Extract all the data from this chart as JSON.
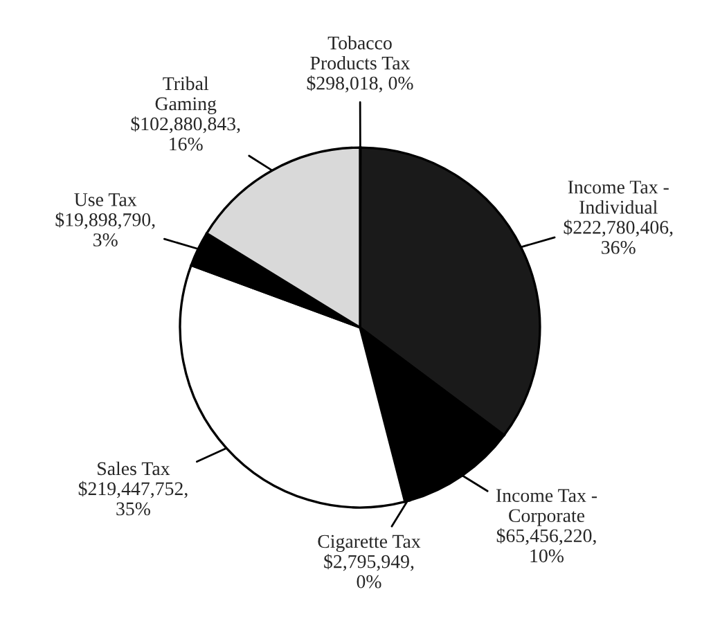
{
  "chart_data": {
    "type": "pie",
    "categories": [
      "Tobacco\nProducts Tax",
      "Income Tax -\nIndividual",
      "Income Tax -\nCorporate",
      "Cigarette Tax",
      "Sales Tax",
      "Use Tax",
      "Tribal\nGaming"
    ],
    "values": [
      298018,
      222780406,
      65456220,
      2795949,
      219447752,
      19898790,
      102880843
    ],
    "value_labels": [
      "$298,018, 0%",
      "$222,780,406,\n36%",
      "$65,456,220,\n10%",
      "$2,795,949,\n0%",
      "$219,447,752,\n35%",
      "$19,898,790,\n3%",
      "$102,880,843,\n16%"
    ],
    "colors": [
      "#000000",
      "#1a1a1a",
      "#000000",
      "#000000",
      "#ffffff",
      "#000000",
      "#d9d9d9"
    ],
    "legend": false
  }
}
